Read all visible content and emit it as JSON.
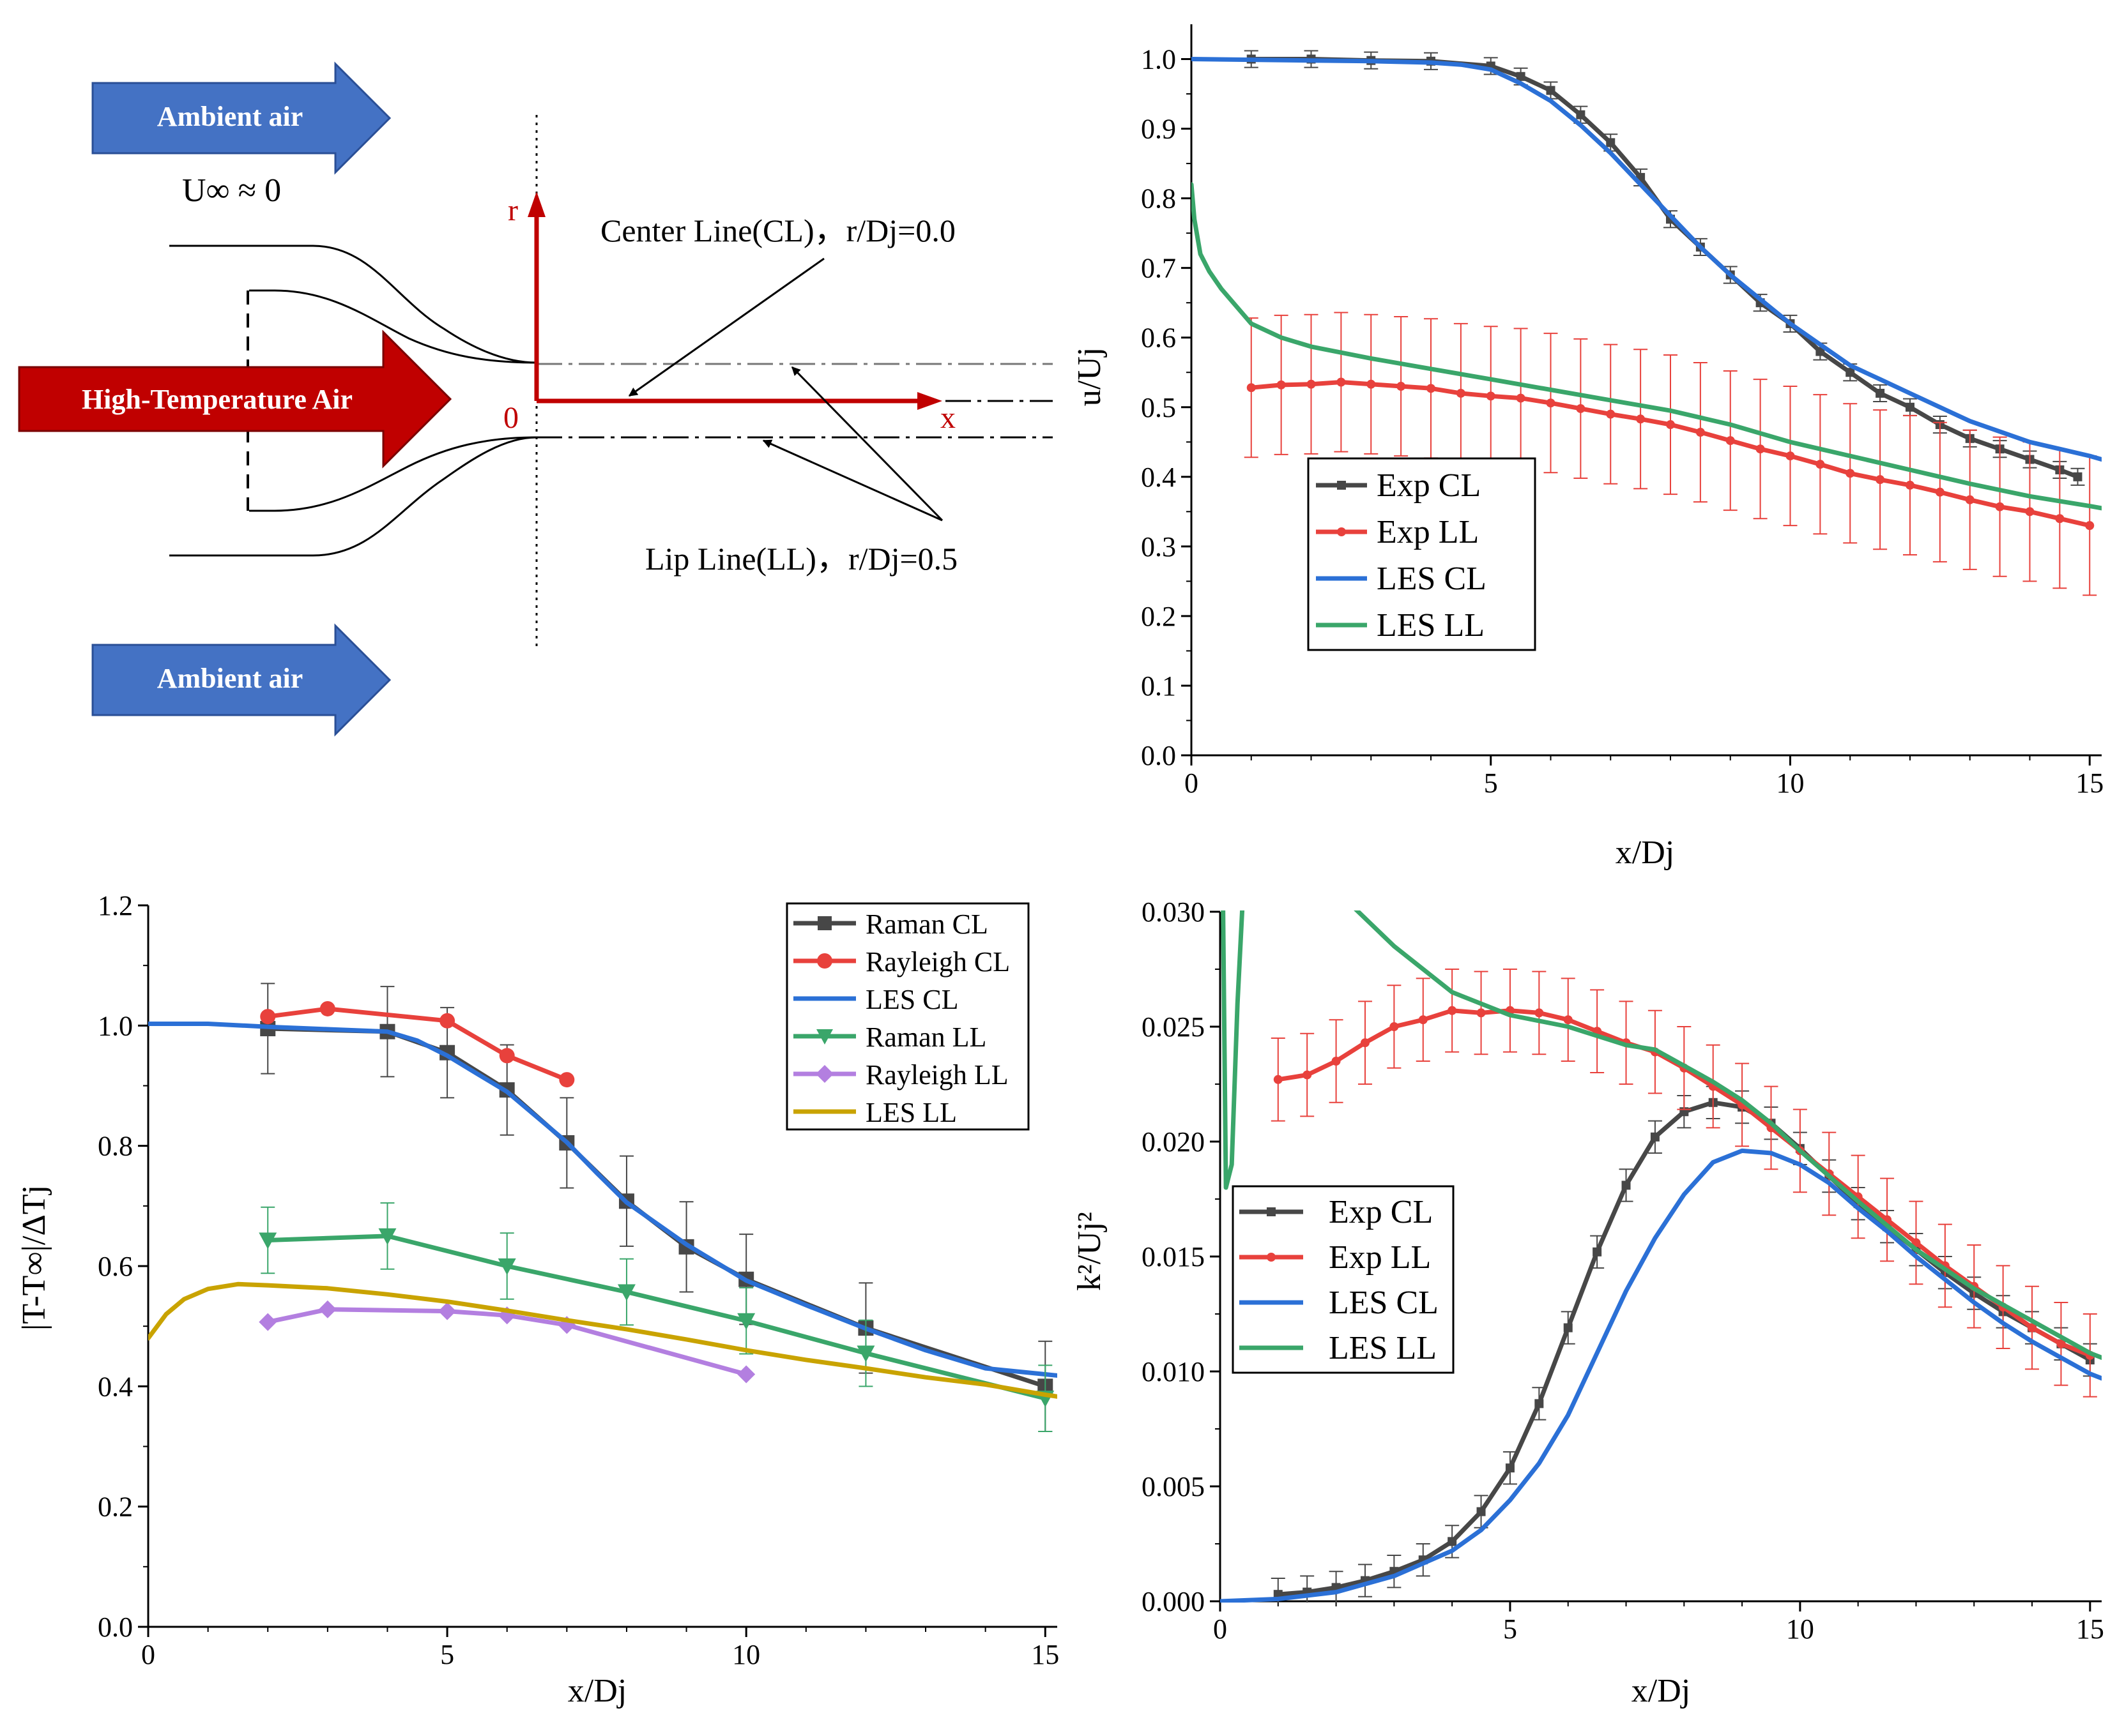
{
  "schematic": {
    "ambient_air_label": "Ambient air",
    "freestream_label": "U∞ ≈ 0",
    "jet_label": "High-Temperature Air",
    "axis_r": "r",
    "axis_x": "x",
    "origin": "0",
    "center_line_label": "Center Line(CL)，r/Dj=0.0",
    "lip_line_label": "Lip Line(LL)，r/Dj=0.5",
    "colors": {
      "ambient": "#4472c4",
      "jet": "#c00000",
      "axes": "#c00000"
    }
  },
  "chart_data": [
    {
      "id": "velocity",
      "type": "line",
      "title": "",
      "xlabel": "x/Dj",
      "ylabel": "u/Uj",
      "xlim": [
        0,
        15.2
      ],
      "ylim": [
        0,
        1.05
      ],
      "xticks": [
        0,
        5,
        10,
        15
      ],
      "yticks": [
        0.0,
        0.1,
        0.2,
        0.3,
        0.4,
        0.5,
        0.6,
        0.7,
        0.8,
        0.9,
        1.0
      ],
      "tick_decimals": 1,
      "legend_position": "middle-left",
      "series": [
        {
          "name": "Exp CL",
          "color": "#474747",
          "marker": "square",
          "error": 0.012,
          "x": [
            1,
            2,
            3,
            4,
            5,
            5.5,
            6,
            6.5,
            7,
            7.5,
            8,
            8.5,
            9,
            9.5,
            10,
            10.5,
            11,
            11.5,
            12,
            12.5,
            13,
            13.5,
            14,
            14.5,
            14.8
          ],
          "y": [
            1.0,
            1.0,
            0.998,
            0.997,
            0.99,
            0.975,
            0.955,
            0.92,
            0.88,
            0.83,
            0.77,
            0.73,
            0.69,
            0.65,
            0.62,
            0.58,
            0.55,
            0.52,
            0.5,
            0.475,
            0.455,
            0.44,
            0.425,
            0.41,
            0.4
          ]
        },
        {
          "name": "Exp LL",
          "color": "#e8413c",
          "marker": "circle",
          "error": 0.1,
          "x": [
            1,
            1.5,
            2,
            2.5,
            3,
            3.5,
            4,
            4.5,
            5,
            5.5,
            6,
            6.5,
            7,
            7.5,
            8,
            8.5,
            9,
            9.5,
            10,
            10.5,
            11,
            11.5,
            12,
            12.5,
            13,
            13.5,
            14,
            14.5,
            15
          ],
          "y": [
            0.528,
            0.532,
            0.533,
            0.536,
            0.533,
            0.53,
            0.527,
            0.52,
            0.516,
            0.513,
            0.506,
            0.498,
            0.49,
            0.483,
            0.475,
            0.464,
            0.452,
            0.44,
            0.43,
            0.418,
            0.405,
            0.396,
            0.388,
            0.378,
            0.367,
            0.357,
            0.35,
            0.34,
            0.33
          ]
        },
        {
          "name": "LES CL",
          "color": "#2b70d6",
          "marker": "none",
          "x": [
            0,
            1,
            2,
            3,
            4,
            4.5,
            5,
            5.5,
            6,
            6.5,
            7,
            7.5,
            8,
            8.5,
            9,
            9.5,
            10,
            10.5,
            11,
            11.5,
            12,
            12.5,
            13,
            13.5,
            14,
            14.5,
            15,
            15.2
          ],
          "y": [
            1.0,
            0.999,
            0.998,
            0.997,
            0.995,
            0.992,
            0.985,
            0.965,
            0.94,
            0.905,
            0.865,
            0.82,
            0.775,
            0.73,
            0.69,
            0.655,
            0.62,
            0.59,
            0.56,
            0.54,
            0.52,
            0.5,
            0.48,
            0.465,
            0.45,
            0.44,
            0.43,
            0.425
          ]
        },
        {
          "name": "LES LL",
          "color": "#3aa66a",
          "marker": "none",
          "x": [
            0,
            0.05,
            0.15,
            0.3,
            0.5,
            0.75,
            1,
            1.5,
            2,
            3,
            4,
            5,
            6,
            7,
            8,
            9,
            10,
            11,
            12,
            13,
            14,
            15,
            15.2
          ],
          "y": [
            0.82,
            0.77,
            0.72,
            0.695,
            0.67,
            0.645,
            0.62,
            0.6,
            0.587,
            0.57,
            0.555,
            0.54,
            0.525,
            0.51,
            0.495,
            0.475,
            0.45,
            0.43,
            0.41,
            0.39,
            0.372,
            0.358,
            0.355
          ]
        }
      ]
    },
    {
      "id": "temperature",
      "type": "line",
      "title": "",
      "xlabel": "x/Dj",
      "ylabel": "|T-T∞|/ΔTj",
      "xlim": [
        0,
        15.2
      ],
      "ylim": [
        0,
        1.2
      ],
      "xticks": [
        0,
        5,
        10,
        15
      ],
      "yticks": [
        0.0,
        0.2,
        0.4,
        0.6,
        0.8,
        1.0,
        1.2
      ],
      "tick_decimals": 1,
      "legend_position": "top-right",
      "series": [
        {
          "name": "Raman CL",
          "color": "#474747",
          "marker": "square",
          "error": 0.075,
          "x": [
            2,
            4,
            5,
            6,
            7,
            8,
            9,
            10,
            12,
            15
          ],
          "y": [
            0.995,
            0.99,
            0.955,
            0.893,
            0.805,
            0.708,
            0.632,
            0.578,
            0.497,
            0.4
          ]
        },
        {
          "name": "Rayleigh CL",
          "color": "#e8413c",
          "marker": "circle",
          "x": [
            2,
            3,
            5,
            6,
            7
          ],
          "y": [
            1.015,
            1.028,
            1.008,
            0.95,
            0.91
          ]
        },
        {
          "name": "LES CL",
          "color": "#2b70d6",
          "marker": "none",
          "x": [
            0,
            1,
            2,
            3,
            4,
            4.5,
            5,
            5.5,
            6,
            6.5,
            7,
            7.5,
            8,
            9,
            10,
            11,
            12,
            13,
            14,
            15,
            15.2
          ],
          "y": [
            1.003,
            1.003,
            0.998,
            0.994,
            0.99,
            0.975,
            0.95,
            0.92,
            0.89,
            0.848,
            0.806,
            0.755,
            0.706,
            0.636,
            0.576,
            0.535,
            0.496,
            0.46,
            0.43,
            0.42,
            0.418
          ]
        },
        {
          "name": "Raman LL",
          "color": "#3aa66a",
          "marker": "triangle-down",
          "error": 0.055,
          "x": [
            2,
            4,
            6,
            8,
            10,
            12,
            15
          ],
          "y": [
            0.643,
            0.65,
            0.6,
            0.557,
            0.509,
            0.455,
            0.38
          ]
        },
        {
          "name": "Rayleigh LL",
          "color": "#b37fe0",
          "marker": "diamond",
          "x": [
            2,
            3,
            5,
            6,
            7,
            10
          ],
          "y": [
            0.507,
            0.528,
            0.525,
            0.518,
            0.502,
            0.42
          ]
        },
        {
          "name": "LES LL",
          "color": "#c9a300",
          "marker": "none",
          "x": [
            0,
            0.3,
            0.6,
            1,
            1.5,
            2,
            3,
            4,
            5,
            6,
            7,
            8,
            9,
            10,
            11,
            12,
            13,
            14,
            15,
            15.2
          ],
          "y": [
            0.48,
            0.52,
            0.545,
            0.562,
            0.57,
            0.568,
            0.563,
            0.553,
            0.541,
            0.526,
            0.51,
            0.495,
            0.478,
            0.46,
            0.444,
            0.43,
            0.415,
            0.403,
            0.386,
            0.383
          ]
        }
      ]
    },
    {
      "id": "tke",
      "type": "line",
      "title": "",
      "xlabel": "x/Dj",
      "ylabel": "k²/Uj²",
      "xlim": [
        0,
        15.2
      ],
      "ylim": [
        0,
        0.03
      ],
      "xticks": [
        0,
        5,
        10,
        15
      ],
      "yticks": [
        0.0,
        0.005,
        0.01,
        0.015,
        0.02,
        0.025,
        0.03
      ],
      "tick_decimals": 3,
      "legend_position": "middle-left",
      "series": [
        {
          "name": "Exp CL",
          "color": "#474747",
          "marker": "square",
          "error": 0.0007,
          "x": [
            1,
            1.5,
            2,
            2.5,
            3,
            3.5,
            4,
            4.5,
            5,
            5.5,
            6,
            6.5,
            7,
            7.5,
            8,
            8.5,
            9,
            9.5,
            10,
            10.5,
            11,
            11.5,
            12,
            12.5,
            13,
            13.5,
            14,
            14.5,
            15
          ],
          "y": [
            0.0003,
            0.0004,
            0.0006,
            0.0009,
            0.0013,
            0.0018,
            0.0026,
            0.0039,
            0.0058,
            0.0086,
            0.0119,
            0.0152,
            0.0181,
            0.0202,
            0.0213,
            0.0217,
            0.0215,
            0.0208,
            0.0197,
            0.0185,
            0.0173,
            0.0163,
            0.0153,
            0.0143,
            0.0134,
            0.0126,
            0.0119,
            0.0112,
            0.0105
          ]
        },
        {
          "name": "Exp LL",
          "color": "#e8413c",
          "marker": "circle",
          "error": 0.0018,
          "x": [
            1,
            1.5,
            2,
            2.5,
            3,
            3.5,
            4,
            4.5,
            5,
            5.5,
            6,
            6.5,
            7,
            7.5,
            8,
            8.5,
            9,
            9.5,
            10,
            10.5,
            11,
            11.5,
            12,
            12.5,
            13,
            13.5,
            14,
            14.5,
            15
          ],
          "y": [
            0.0227,
            0.0229,
            0.0235,
            0.0243,
            0.025,
            0.0253,
            0.0257,
            0.0256,
            0.0257,
            0.0256,
            0.0253,
            0.0248,
            0.0243,
            0.0239,
            0.0232,
            0.0224,
            0.0216,
            0.0206,
            0.0196,
            0.0186,
            0.0176,
            0.0166,
            0.0156,
            0.0146,
            0.0137,
            0.0128,
            0.0119,
            0.0112,
            0.0107
          ]
        },
        {
          "name": "LES CL",
          "color": "#2b70d6",
          "marker": "none",
          "x": [
            0,
            1,
            2,
            3,
            4,
            4.5,
            5,
            5.5,
            6,
            6.5,
            7,
            7.5,
            8,
            8.5,
            9,
            9.5,
            10,
            10.5,
            11,
            11.5,
            12,
            12.5,
            13,
            13.5,
            14,
            14.5,
            15,
            15.2
          ],
          "y": [
            0.0,
            0.0001,
            0.0004,
            0.0011,
            0.0022,
            0.0031,
            0.0044,
            0.006,
            0.0081,
            0.0108,
            0.0135,
            0.0158,
            0.0177,
            0.0191,
            0.0196,
            0.0195,
            0.019,
            0.0182,
            0.0171,
            0.0161,
            0.015,
            0.014,
            0.013,
            0.0121,
            0.0113,
            0.0106,
            0.0099,
            0.0097
          ]
        },
        {
          "name": "LES LL",
          "color": "#3aa66a",
          "marker": "none",
          "x": [
            0.05,
            0.1,
            0.2,
            0.3,
            0.4
          ],
          "y": [
            0.0305,
            0.018,
            0.019,
            0.026,
            0.031
          ],
          "x2": [
            2.3,
            3,
            3.5,
            4,
            5,
            6,
            7,
            7.5,
            8,
            8.5,
            9,
            9.5,
            10,
            11,
            12,
            13,
            14,
            15,
            15.2
          ],
          "y2": [
            0.0302,
            0.0285,
            0.0275,
            0.0265,
            0.0255,
            0.025,
            0.0242,
            0.024,
            0.0233,
            0.0226,
            0.0218,
            0.0208,
            0.0196,
            0.0174,
            0.0153,
            0.0136,
            0.0122,
            0.0108,
            0.0106
          ]
        }
      ]
    }
  ]
}
